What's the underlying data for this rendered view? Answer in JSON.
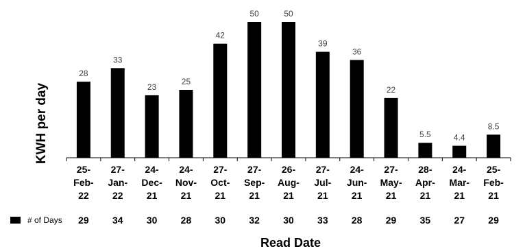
{
  "chart_data": {
    "type": "bar",
    "xlabel": "Read Date",
    "ylabel": "KWH per day",
    "ylim": [
      0,
      50
    ],
    "grid": false,
    "bar_color": "#000000",
    "categories": [
      [
        "25-",
        "Feb-",
        "22"
      ],
      [
        "27-",
        "Jan-",
        "22"
      ],
      [
        "24-",
        "Dec-",
        "21"
      ],
      [
        "24-",
        "Nov-",
        "21"
      ],
      [
        "27-",
        "Oct-",
        "21"
      ],
      [
        "27-",
        "Sep-",
        "21"
      ],
      [
        "26-",
        "Aug-",
        "21"
      ],
      [
        "27-",
        "Jul-",
        "21"
      ],
      [
        "24-",
        "Jun-",
        "21"
      ],
      [
        "27-",
        "May-",
        "21"
      ],
      [
        "28-",
        "Apr-",
        "21"
      ],
      [
        "24-",
        "Mar-",
        "21"
      ],
      [
        "25-",
        "Feb-",
        "21"
      ]
    ],
    "values": [
      28,
      33,
      23,
      25,
      42,
      50,
      50,
      39,
      36,
      22,
      5.5,
      4.4,
      8.5
    ],
    "value_labels": [
      "28",
      "33",
      "23",
      "25",
      "42",
      "50",
      "50",
      "39",
      "36",
      "22",
      "5.5",
      "4.4",
      "8.5"
    ],
    "days_table": {
      "legend_label": "# of Days",
      "values": [
        "29",
        "34",
        "30",
        "28",
        "30",
        "32",
        "30",
        "33",
        "28",
        "29",
        "35",
        "27",
        "29"
      ]
    }
  }
}
